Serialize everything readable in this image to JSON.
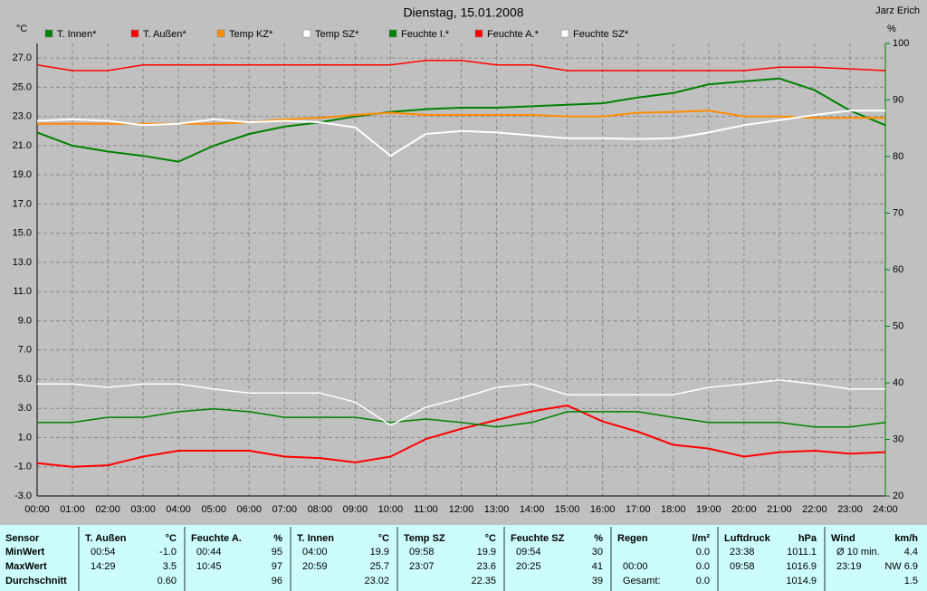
{
  "chart_data": {
    "type": "line",
    "title": "Dienstag, 15.01.2008",
    "author": "Jarz Erich",
    "y_label": "°C",
    "y2_label": "%",
    "x": [
      0,
      1,
      2,
      3,
      4,
      5,
      6,
      7,
      8,
      9,
      10,
      11,
      12,
      13,
      14,
      15,
      16,
      17,
      18,
      19,
      20,
      21,
      22,
      23,
      24
    ],
    "xlim": [
      0,
      24
    ],
    "xticks": [
      {
        "value": 0,
        "label": "00:00"
      },
      {
        "value": 1,
        "label": "01:00"
      },
      {
        "value": 2,
        "label": "02:00"
      },
      {
        "value": 3,
        "label": "03:00"
      },
      {
        "value": 4,
        "label": "04:00"
      },
      {
        "value": 5,
        "label": "05:00"
      },
      {
        "value": 6,
        "label": "06:00"
      },
      {
        "value": 7,
        "label": "07:00"
      },
      {
        "value": 8,
        "label": "08:00"
      },
      {
        "value": 9,
        "label": "09:00"
      },
      {
        "value": 10,
        "label": "10:00"
      },
      {
        "value": 11,
        "label": "11:00"
      },
      {
        "value": 12,
        "label": "12:00"
      },
      {
        "value": 13,
        "label": "13:00"
      },
      {
        "value": 14,
        "label": "14:00"
      },
      {
        "value": 15,
        "label": "15:00"
      },
      {
        "value": 16,
        "label": "16:00"
      },
      {
        "value": 17,
        "label": "17:00"
      },
      {
        "value": 18,
        "label": "18:00"
      },
      {
        "value": 19,
        "label": "19:00"
      },
      {
        "value": 20,
        "label": "20:00"
      },
      {
        "value": 21,
        "label": "21:00"
      },
      {
        "value": 22,
        "label": "22:00"
      },
      {
        "value": 23,
        "label": "23:00"
      },
      {
        "value": 24,
        "label": "24:00"
      }
    ],
    "ylim": [
      -3,
      28
    ],
    "yticks": [
      {
        "value": -3,
        "label": "-3.0"
      },
      {
        "value": -1,
        "label": "-1.0"
      },
      {
        "value": 1,
        "label": "1.0"
      },
      {
        "value": 3,
        "label": "3.0"
      },
      {
        "value": 5,
        "label": "5.0"
      },
      {
        "value": 7,
        "label": "7.0"
      },
      {
        "value": 9,
        "label": "9.0"
      },
      {
        "value": 11,
        "label": "11.0"
      },
      {
        "value": 13,
        "label": "13.0"
      },
      {
        "value": 15,
        "label": "15.0"
      },
      {
        "value": 17,
        "label": "17.0"
      },
      {
        "value": 19,
        "label": "19.0"
      },
      {
        "value": 21,
        "label": "21.0"
      },
      {
        "value": 23,
        "label": "23.0"
      },
      {
        "value": 25,
        "label": "25.0"
      },
      {
        "value": 27,
        "label": "27.0"
      }
    ],
    "y2lim": [
      20,
      100
    ],
    "y2ticks": [
      20,
      30,
      40,
      50,
      60,
      70,
      80,
      90,
      100
    ],
    "grid": true,
    "series": [
      {
        "name": "T. Innen*",
        "color": "#008000",
        "values": [
          21.9,
          21.0,
          20.6,
          20.3,
          19.9,
          21.0,
          21.8,
          22.3,
          22.6,
          23.0,
          23.3,
          23.5,
          23.6,
          23.6,
          23.7,
          23.8,
          23.9,
          24.3,
          24.6,
          25.2,
          25.4,
          25.6,
          24.8,
          23.4,
          22.4
        ]
      },
      {
        "name": "T. Außen*",
        "color": "#ff0000",
        "values": [
          -0.75,
          -1.0,
          -0.9,
          -0.3,
          0.1,
          0.1,
          0.1,
          -0.3,
          -0.4,
          -0.7,
          -0.3,
          0.9,
          1.6,
          2.2,
          2.8,
          3.2,
          2.1,
          1.4,
          0.5,
          0.25,
          -0.3,
          0.0,
          0.1,
          -0.1,
          0.0
        ]
      },
      {
        "name": "Temp KZ*",
        "color": "#ff8c00",
        "values": [
          22.5,
          22.5,
          22.5,
          22.5,
          22.5,
          22.5,
          22.6,
          22.8,
          22.9,
          23.1,
          23.25,
          23.1,
          23.1,
          23.1,
          23.1,
          23.0,
          23.0,
          23.25,
          23.3,
          23.4,
          23.0,
          23.0,
          22.9,
          22.9,
          22.9
        ]
      },
      {
        "name": "Temp SZ*",
        "color": "#ffffff",
        "values": [
          22.7,
          22.8,
          22.7,
          22.4,
          22.5,
          22.8,
          22.6,
          22.7,
          22.6,
          22.25,
          20.3,
          21.8,
          22.0,
          21.9,
          21.7,
          21.5,
          21.5,
          21.45,
          21.5,
          21.9,
          22.4,
          22.75,
          23.1,
          23.4,
          23.4
        ]
      },
      {
        "name": "Feuchte I.*",
        "color": "#008000",
        "axis": "y2",
        "values": [
          33.0,
          33.0,
          33.9,
          33.9,
          34.9,
          35.4,
          34.9,
          33.9,
          33.9,
          33.9,
          33.0,
          33.6,
          33.0,
          32.2,
          33.0,
          34.9,
          34.9,
          34.9,
          33.9,
          33.0,
          33.0,
          33.0,
          32.2,
          32.2,
          33.0
        ]
      },
      {
        "name": "Feuchte A.*",
        "color": "#ff0000",
        "axis": "y2",
        "values": [
          96.2,
          95.2,
          95.2,
          96.2,
          96.2,
          96.2,
          96.2,
          96.2,
          96.2,
          96.2,
          96.2,
          97.0,
          97.0,
          96.2,
          96.2,
          95.2,
          95.2,
          95.2,
          95.2,
          95.2,
          95.2,
          95.8,
          95.8,
          95.5,
          95.2
        ]
      },
      {
        "name": "Feuchte SZ*",
        "color": "#ffffff",
        "axis": "y2",
        "values": [
          39.8,
          39.8,
          39.2,
          39.8,
          39.8,
          38.9,
          38.2,
          38.2,
          38.2,
          36.6,
          32.5,
          35.7,
          37.3,
          39.2,
          39.8,
          37.9,
          37.9,
          37.9,
          37.9,
          39.2,
          39.8,
          40.5,
          39.8,
          38.9,
          38.9
        ]
      }
    ]
  },
  "table": {
    "row_labels": [
      "Sensor",
      "MinWert",
      "MaxWert",
      "Durchschnitt"
    ],
    "columns": [
      {
        "name": "T. Außen",
        "unit": "°C",
        "min": {
          "time": "00:54",
          "value": "-1.0"
        },
        "max": {
          "time": "14:29",
          "value": "3.5"
        },
        "avg": {
          "value": "0.60"
        }
      },
      {
        "name": "Feuchte A.",
        "unit": "%",
        "min": {
          "time": "00:44",
          "value": "95"
        },
        "max": {
          "time": "10:45",
          "value": "97"
        },
        "avg": {
          "value": "96"
        }
      },
      {
        "name": "T. Innen",
        "unit": "°C",
        "min": {
          "time": "04:00",
          "value": "19.9"
        },
        "max": {
          "time": "20:59",
          "value": "25.7"
        },
        "avg": {
          "value": "23.02"
        }
      },
      {
        "name": "Temp SZ",
        "unit": "°C",
        "min": {
          "time": "09:58",
          "value": "19.9"
        },
        "max": {
          "time": "23:07",
          "value": "23.6"
        },
        "avg": {
          "value": "22.35"
        }
      },
      {
        "name": "Feuchte SZ",
        "unit": "%",
        "min": {
          "time": "09:54",
          "value": "30"
        },
        "max": {
          "time": "20:25",
          "value": "41"
        },
        "avg": {
          "value": "39"
        }
      },
      {
        "name": "Regen",
        "unit": "l/m²",
        "min": {
          "value": "0.0"
        },
        "max": {
          "time": "00:00",
          "value": "0.0"
        },
        "avg": {
          "time": "Gesamt:",
          "value": "0.0"
        }
      },
      {
        "name": "Luftdruck",
        "unit": "hPa",
        "min": {
          "time": "23:38",
          "value": "1011.1"
        },
        "max": {
          "time": "09:58",
          "value": "1016.9"
        },
        "avg": {
          "value": "1014.9"
        }
      },
      {
        "name": "Wind",
        "unit": "km/h",
        "min": {
          "time": "Ø 10 min.",
          "value": "4.4"
        },
        "max": {
          "time": "23:19",
          "value": "NW 6.9"
        },
        "avg": {
          "value": "1.5"
        }
      }
    ]
  }
}
